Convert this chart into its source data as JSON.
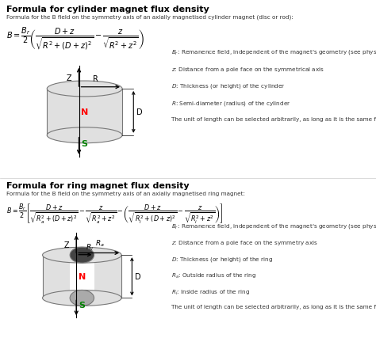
{
  "bg_color": "#ffffff",
  "title1": "Formula for cylinder magnet flux density",
  "subtitle1": "Formula for the B field on the symmetry axis of an axially magnetised cylinder magnet (disc or rod):",
  "formula1": "$B = \\dfrac{B_r}{2}\\left(\\dfrac{D+z}{\\sqrt{R^2+(D+z)^2}} - \\dfrac{z}{\\sqrt{R^2+z^2}}\\right)$",
  "legend1": [
    "$B_r$: Remanence field, independent of the magnet's geometry (see physical magnet data)",
    "$z$: Distance from a pole face on the symmetrical axis",
    "$D$: Thickness (or height) of the cylinder",
    "$R$: Semi-diameter (radius) of the cylinder",
    "The unit of length can be selected arbitrarily, as long as it is the same for all lengths."
  ],
  "title2": "Formula for ring magnet flux density",
  "subtitle2": "Formula for the B field on the symmetry axis of an axially magnetised ring magnet:",
  "formula2": "$B = \\dfrac{B_r}{2}\\left[\\dfrac{D+z}{\\sqrt{R_a^2+(D+z)^2}} - \\dfrac{z}{\\sqrt{R_a^2+z^2}} - \\left(\\dfrac{D+z}{\\sqrt{R_i^2+(D+z)^2}} - \\dfrac{z}{\\sqrt{R_i^2+z^2}}\\right)\\right]$",
  "legend2": [
    "$B_r$: Remanence field, independent of the magnet's geometry (see physical magnet data)",
    "$z$: Distance from a pole face on the symmetry axis",
    "$D$: Thickness (or height) of the ring",
    "$R_a$: Outside radius of the ring",
    "$R_i$: Inside radius of the ring",
    "The unit of length can be selected arbitrarily, as long as it is the same for all lengths."
  ]
}
